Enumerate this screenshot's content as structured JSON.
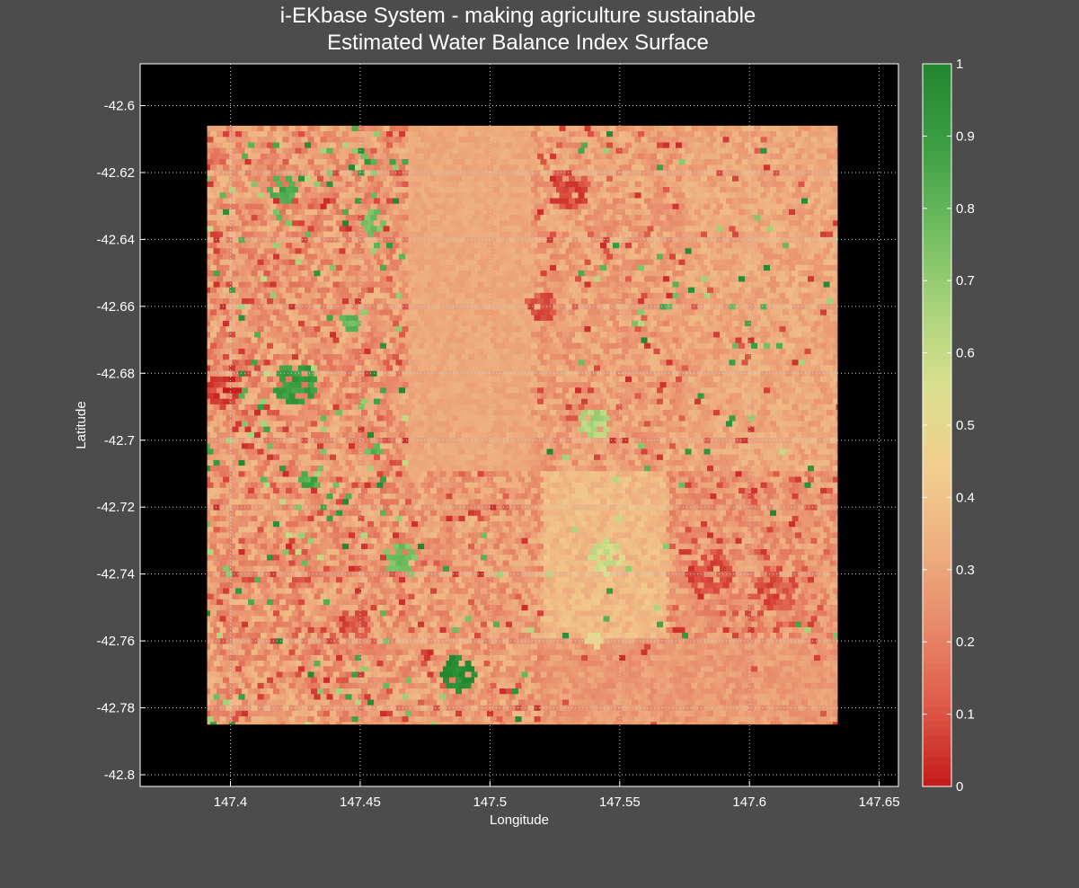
{
  "chart_data": {
    "type": "heatmap",
    "title": "i-EKbase System - making agriculture sustainable",
    "subtitle": "Estimated Water Balance Index Surface",
    "xlabel": "Longitude",
    "ylabel": "Latitude",
    "xlim": [
      147.3652,
      147.6574
    ],
    "ylim": [
      -42.8035,
      -42.5875
    ],
    "grid": true,
    "x_ticks": [
      147.4,
      147.45,
      147.5,
      147.55,
      147.6,
      147.65
    ],
    "x_tick_labels": [
      "147.4",
      "147.45",
      "147.5",
      "147.55",
      "147.6",
      "147.65"
    ],
    "y_ticks": [
      -42.6,
      -42.62,
      -42.64,
      -42.66,
      -42.68,
      -42.7,
      -42.72,
      -42.74,
      -42.76,
      -42.78,
      -42.8
    ],
    "y_tick_labels": [
      "-42.6",
      "-42.62",
      "-42.64",
      "-42.66",
      "-42.68",
      "-42.7",
      "-42.72",
      "-42.74",
      "-42.76",
      "-42.78",
      "-42.8"
    ],
    "data_extent": {
      "lon": [
        147.391,
        147.634
      ],
      "lat": [
        -42.785,
        -42.606
      ]
    },
    "colorbar": {
      "range": [
        0,
        1
      ],
      "ticks": [
        0,
        0.1,
        0.2,
        0.3,
        0.4,
        0.5,
        0.6,
        0.7,
        0.8,
        0.9,
        1
      ],
      "tick_labels": [
        "0",
        "0.1",
        "0.2",
        "0.3",
        "0.4",
        "0.5",
        "0.6",
        "0.7",
        "0.8",
        "0.9",
        "1"
      ],
      "colors": [
        "#c41a1a",
        "#de5a48",
        "#e88a6a",
        "#eeb081",
        "#f2cf8e",
        "#d9e08c",
        "#a6d27a",
        "#6cbb5e",
        "#3a9e42",
        "#22862f"
      ]
    },
    "base_value": 0.27,
    "regions": [
      {
        "lon": [
          147.391,
          147.468
        ],
        "lat": [
          -42.785,
          -42.606
        ],
        "mean": 0.27,
        "spread": 0.1,
        "hot_red": 0.07,
        "green": 0.05
      },
      {
        "lon": [
          147.468,
          147.516
        ],
        "lat": [
          -42.71,
          -42.606
        ],
        "mean": 0.31,
        "spread": 0.03,
        "hot_red": 0.0,
        "green": 0.0
      },
      {
        "lon": [
          147.516,
          147.575
        ],
        "lat": [
          -42.71,
          -42.606
        ],
        "mean": 0.29,
        "spread": 0.08,
        "hot_red": 0.05,
        "green": 0.02
      },
      {
        "lon": [
          147.575,
          147.634
        ],
        "lat": [
          -42.71,
          -42.606
        ],
        "mean": 0.31,
        "spread": 0.06,
        "hot_red": 0.02,
        "green": 0.01
      },
      {
        "lon": [
          147.468,
          147.52
        ],
        "lat": [
          -42.785,
          -42.71
        ],
        "mean": 0.28,
        "spread": 0.09,
        "hot_red": 0.06,
        "green": 0.03
      },
      {
        "lon": [
          147.52,
          147.568
        ],
        "lat": [
          -42.76,
          -42.71
        ],
        "mean": 0.37,
        "spread": 0.05,
        "hot_red": 0.0,
        "green": 0.02
      },
      {
        "lon": [
          147.568,
          147.634
        ],
        "lat": [
          -42.76,
          -42.71
        ],
        "mean": 0.26,
        "spread": 0.08,
        "hot_red": 0.07,
        "green": 0.01
      },
      {
        "lon": [
          147.52,
          147.634
        ],
        "lat": [
          -42.785,
          -42.76
        ],
        "mean": 0.27,
        "spread": 0.05,
        "hot_red": 0.01,
        "green": 0.0
      }
    ],
    "hotspots": [
      {
        "lon": 147.45,
        "lat": -42.618,
        "value": 0.95,
        "radius": 0.004
      },
      {
        "lon": 147.42,
        "lat": -42.625,
        "value": 0.85,
        "radius": 0.006
      },
      {
        "lon": 147.41,
        "lat": -42.642,
        "value": 0.95,
        "radius": 0.002
      },
      {
        "lon": 147.455,
        "lat": -42.635,
        "value": 0.75,
        "radius": 0.005
      },
      {
        "lon": 147.425,
        "lat": -42.683,
        "value": 0.9,
        "radius": 0.008
      },
      {
        "lon": 147.446,
        "lat": -42.665,
        "value": 0.8,
        "radius": 0.004
      },
      {
        "lon": 147.397,
        "lat": -42.685,
        "value": 0.05,
        "radius": 0.007
      },
      {
        "lon": 147.43,
        "lat": -42.712,
        "value": 0.85,
        "radius": 0.004
      },
      {
        "lon": 147.455,
        "lat": -42.703,
        "value": 0.8,
        "radius": 0.003
      },
      {
        "lon": 147.488,
        "lat": -42.77,
        "value": 0.97,
        "radius": 0.007
      },
      {
        "lon": 147.475,
        "lat": -42.765,
        "value": 0.05,
        "radius": 0.003
      },
      {
        "lon": 147.54,
        "lat": -42.695,
        "value": 0.65,
        "radius": 0.006
      },
      {
        "lon": 147.53,
        "lat": -42.625,
        "value": 0.08,
        "radius": 0.008
      },
      {
        "lon": 147.52,
        "lat": -42.66,
        "value": 0.1,
        "radius": 0.006
      },
      {
        "lon": 147.585,
        "lat": -42.74,
        "value": 0.1,
        "radius": 0.009
      },
      {
        "lon": 147.61,
        "lat": -42.745,
        "value": 0.1,
        "radius": 0.008
      },
      {
        "lon": 147.545,
        "lat": -42.735,
        "value": 0.58,
        "radius": 0.007
      },
      {
        "lon": 147.465,
        "lat": -42.735,
        "value": 0.75,
        "radius": 0.006
      },
      {
        "lon": 147.448,
        "lat": -42.755,
        "value": 0.1,
        "radius": 0.006
      },
      {
        "lon": 147.54,
        "lat": -42.76,
        "value": 0.5,
        "radius": 0.004
      }
    ]
  }
}
